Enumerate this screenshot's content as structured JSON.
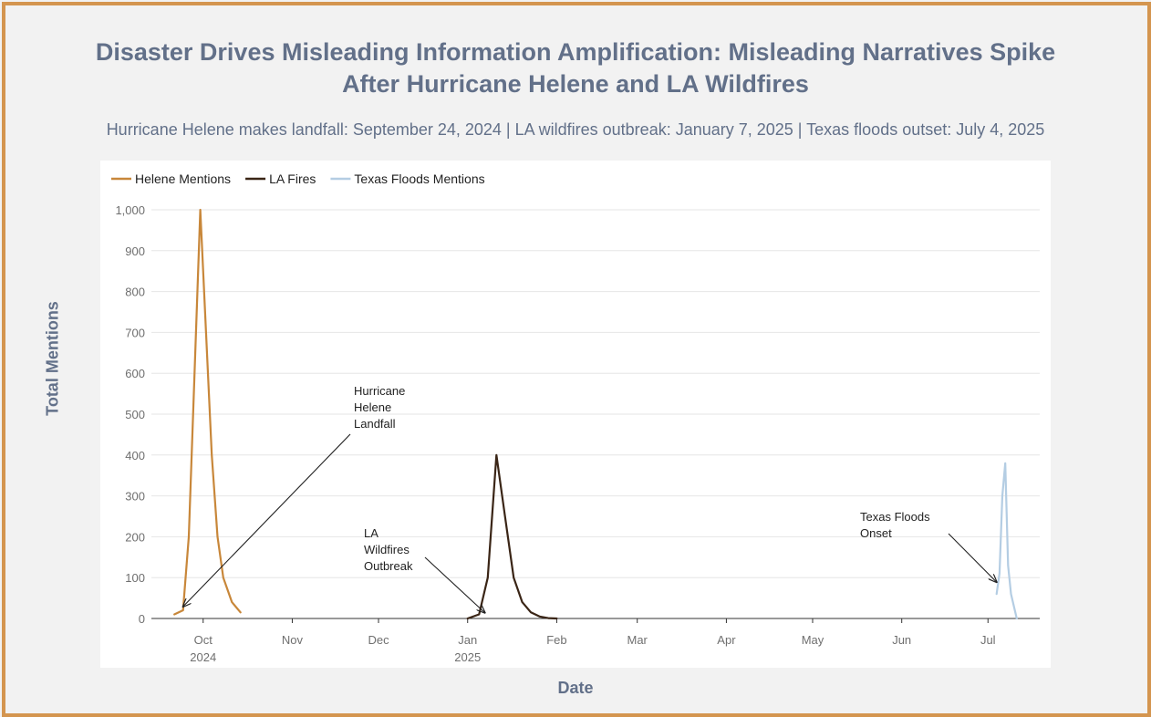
{
  "title_line1": "Disaster Drives Misleading Information Amplification: Misleading Narratives Spike",
  "title_line2": "After Hurricane Helene and LA Wildfires",
  "subtitle": "Hurricane Helene makes landfall: September 24, 2024 | LA wildfires outbreak: January 7, 2025 | Texas floods outset: July 4, 2025",
  "colors": {
    "border": "#d4954f",
    "title": "#627089",
    "helene": "#c8873a",
    "lafires": "#3a2516",
    "texas": "#b4cde3"
  },
  "chart_data": {
    "type": "line",
    "title": "Disaster Drives Misleading Information Amplification: Misleading Narratives Spike After Hurricane Helene and LA Wildfires",
    "xlabel": "Date",
    "ylabel": "Total Mentions",
    "ylim": [
      0,
      1000
    ],
    "y_ticks": [
      0,
      100,
      200,
      300,
      400,
      500,
      600,
      700,
      800,
      900,
      1000
    ],
    "y_tick_labels": [
      "0",
      "100",
      "200",
      "300",
      "400",
      "500",
      "600",
      "700",
      "800",
      "900",
      "1,000"
    ],
    "xlim": [
      "2024-09-13",
      "2025-07-19"
    ],
    "x_ticks": [
      {
        "date": "2024-10-01",
        "label": "Oct",
        "sublabel": "2024"
      },
      {
        "date": "2024-11-01",
        "label": "Nov",
        "sublabel": ""
      },
      {
        "date": "2024-12-01",
        "label": "Dec",
        "sublabel": ""
      },
      {
        "date": "2025-01-01",
        "label": "Jan",
        "sublabel": "2025"
      },
      {
        "date": "2025-02-01",
        "label": "Feb",
        "sublabel": ""
      },
      {
        "date": "2025-03-01",
        "label": "Mar",
        "sublabel": ""
      },
      {
        "date": "2025-04-01",
        "label": "Apr",
        "sublabel": ""
      },
      {
        "date": "2025-05-01",
        "label": "May",
        "sublabel": ""
      },
      {
        "date": "2025-06-01",
        "label": "Jun",
        "sublabel": ""
      },
      {
        "date": "2025-07-01",
        "label": "Jul",
        "sublabel": ""
      }
    ],
    "grid": true,
    "legend_position": "top-left",
    "series": [
      {
        "name": "Helene Mentions",
        "color": "#c8873a",
        "points": [
          [
            "2024-09-21",
            10
          ],
          [
            "2024-09-24",
            20
          ],
          [
            "2024-09-26",
            200
          ],
          [
            "2024-09-28",
            600
          ],
          [
            "2024-09-30",
            1000
          ],
          [
            "2024-10-02",
            700
          ],
          [
            "2024-10-04",
            400
          ],
          [
            "2024-10-06",
            200
          ],
          [
            "2024-10-08",
            100
          ],
          [
            "2024-10-11",
            40
          ],
          [
            "2024-10-14",
            15
          ]
        ]
      },
      {
        "name": "LA Fires",
        "color": "#3a2516",
        "points": [
          [
            "2025-01-01",
            0
          ],
          [
            "2025-01-05",
            10
          ],
          [
            "2025-01-08",
            100
          ],
          [
            "2025-01-11",
            400
          ],
          [
            "2025-01-14",
            250
          ],
          [
            "2025-01-17",
            100
          ],
          [
            "2025-01-20",
            40
          ],
          [
            "2025-01-23",
            15
          ],
          [
            "2025-01-26",
            5
          ],
          [
            "2025-01-29",
            1
          ],
          [
            "2025-02-01",
            0
          ]
        ]
      },
      {
        "name": "Texas Floods Mentions",
        "color": "#b4cde3",
        "points": [
          [
            "2025-07-04",
            60
          ],
          [
            "2025-07-05",
            110
          ],
          [
            "2025-07-06",
            300
          ],
          [
            "2025-07-07",
            380
          ],
          [
            "2025-07-08",
            130
          ],
          [
            "2025-07-09",
            60
          ],
          [
            "2025-07-11",
            0
          ]
        ]
      }
    ],
    "annotations": [
      {
        "lines": [
          "Hurricane",
          "Helene",
          "Landfall"
        ],
        "point": [
          "2024-09-24",
          20
        ]
      },
      {
        "lines": [
          "LA",
          "Wildfires",
          "Outbreak"
        ],
        "point": [
          "2025-01-07",
          5
        ]
      },
      {
        "lines": [
          "Texas Floods",
          "Onset"
        ],
        "point": [
          "2025-07-04",
          80
        ]
      }
    ]
  }
}
